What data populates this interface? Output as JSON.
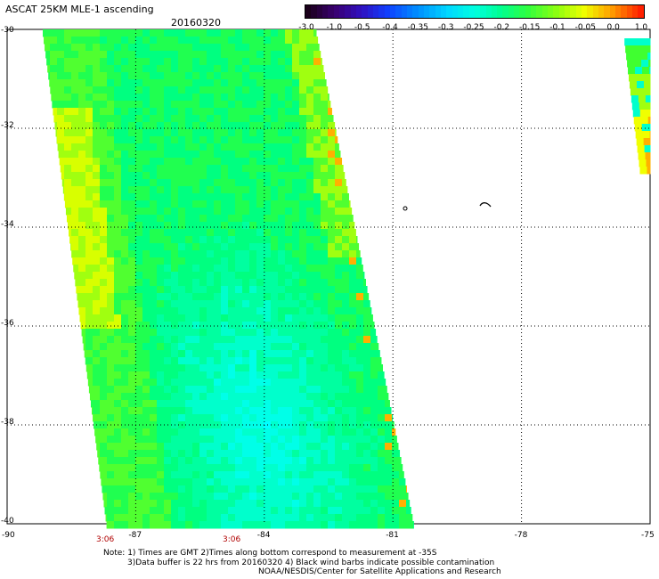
{
  "header": {
    "title": "ASCAT 25KM MLE-1 ascending",
    "date": "20160320"
  },
  "colorbar": {
    "labels": [
      "-3.0",
      "-1.0",
      "-0.5",
      "-0.4",
      "-0.35",
      "-0.3",
      "-0.25",
      "-0.2",
      "-0.15",
      "-0.1",
      "-0.05",
      "0.0",
      "1.0"
    ],
    "colors": [
      "#2a0030",
      "#3c0080",
      "#1a2bff",
      "#0070ff",
      "#00a8ff",
      "#00e0ff",
      "#00ffd8",
      "#00ff80",
      "#40ff40",
      "#a0ff20",
      "#f0ff00",
      "#ffb000",
      "#ff3000"
    ]
  },
  "map": {
    "lat_labels": [
      "-30",
      "-32",
      "-34",
      "-36",
      "-38",
      "-40"
    ],
    "lon_labels": [
      "-90",
      "-87",
      "-84",
      "-81",
      "-78",
      "-75"
    ],
    "time_labels": [
      "3:06",
      "3:06"
    ],
    "lat_range": [
      -40,
      -30
    ],
    "lon_range": [
      -90,
      -75
    ],
    "grid_style": "dotted",
    "swath_colors": {
      "cyan": "#00ffff",
      "aqua": "#00ffcc",
      "green_cyan": "#00ff80",
      "green": "#20ff40",
      "yellow_green": "#a0ff00",
      "yellow": "#f0ff00",
      "orange": "#ffb000"
    }
  },
  "notes": {
    "line1": "Note: 1) Times are GMT 2)Times along bottom correspond to measurement at -35S",
    "line2": "3)Data buffer is 22 hrs from 20160320 4) Black wind barbs indicate possible contamination",
    "line3": "NOAA/NESDIS/Center for Satellite Applications and Research"
  }
}
